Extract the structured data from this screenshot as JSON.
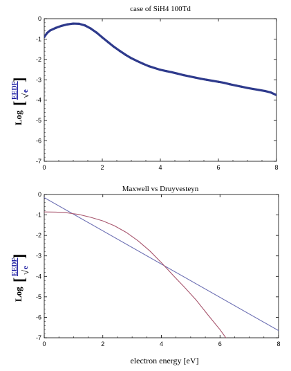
{
  "chart_data": [
    {
      "type": "line",
      "title": "case of SiH4 100Td",
      "xlabel": "",
      "ylabel": {
        "log": "Log",
        "numerator": "EEDF",
        "denominator": "e"
      },
      "xlim": [
        0,
        8
      ],
      "ylim": [
        -7,
        0
      ],
      "xticks": [
        0,
        2,
        4,
        6,
        8
      ],
      "yticks": [
        0,
        -1,
        -2,
        -3,
        -4,
        -5,
        -6,
        -7
      ],
      "grid": false,
      "series": [
        {
          "color": "#2e3a8c",
          "style": "thick-noisy",
          "x": [
            0,
            0.1,
            0.2,
            0.4,
            0.6,
            0.8,
            1.0,
            1.2,
            1.4,
            1.6,
            1.8,
            2.0,
            2.2,
            2.4,
            2.6,
            2.8,
            3.0,
            3.2,
            3.4,
            3.6,
            3.8,
            4.0,
            4.2,
            4.4,
            4.6,
            4.8,
            5.0,
            5.2,
            5.4,
            5.6,
            5.8,
            6.0,
            6.2,
            6.4,
            6.6,
            6.8,
            7.0,
            7.2,
            7.4,
            7.6,
            7.8,
            8.0
          ],
          "y": [
            -0.9,
            -0.7,
            -0.58,
            -0.45,
            -0.35,
            -0.28,
            -0.24,
            -0.25,
            -0.33,
            -0.48,
            -0.68,
            -0.92,
            -1.15,
            -1.38,
            -1.58,
            -1.77,
            -1.94,
            -2.08,
            -2.21,
            -2.33,
            -2.42,
            -2.51,
            -2.57,
            -2.63,
            -2.7,
            -2.77,
            -2.83,
            -2.89,
            -2.95,
            -3.0,
            -3.05,
            -3.1,
            -3.15,
            -3.22,
            -3.28,
            -3.34,
            -3.4,
            -3.45,
            -3.5,
            -3.55,
            -3.62,
            -3.75
          ]
        }
      ]
    },
    {
      "type": "line",
      "title": "Maxwell vs Druyvesteyn",
      "xlabel": "electron energy [eV]",
      "ylabel": {
        "log": "Log",
        "numerator": "EEDF",
        "denominator": "e"
      },
      "xlim": [
        0,
        8
      ],
      "ylim": [
        -7,
        0
      ],
      "xticks": [
        0,
        2,
        4,
        6,
        8
      ],
      "yticks": [
        0,
        -1,
        -2,
        -3,
        -4,
        -5,
        -6,
        -7
      ],
      "grid": false,
      "series": [
        {
          "color": "#6c6fb3",
          "x": [
            0,
            8
          ],
          "y": [
            -0.15,
            -6.65
          ]
        },
        {
          "color": "#a8566e",
          "x": [
            0,
            0.4,
            0.8,
            1.2,
            1.6,
            2.0,
            2.4,
            2.8,
            3.2,
            3.6,
            4.0,
            4.4,
            4.8,
            5.2,
            5.6,
            6.0,
            6.2
          ],
          "y": [
            -0.85,
            -0.86,
            -0.9,
            -0.98,
            -1.12,
            -1.29,
            -1.53,
            -1.85,
            -2.26,
            -2.75,
            -3.33,
            -3.95,
            -4.55,
            -5.18,
            -5.9,
            -6.6,
            -7.0
          ]
        }
      ]
    }
  ]
}
